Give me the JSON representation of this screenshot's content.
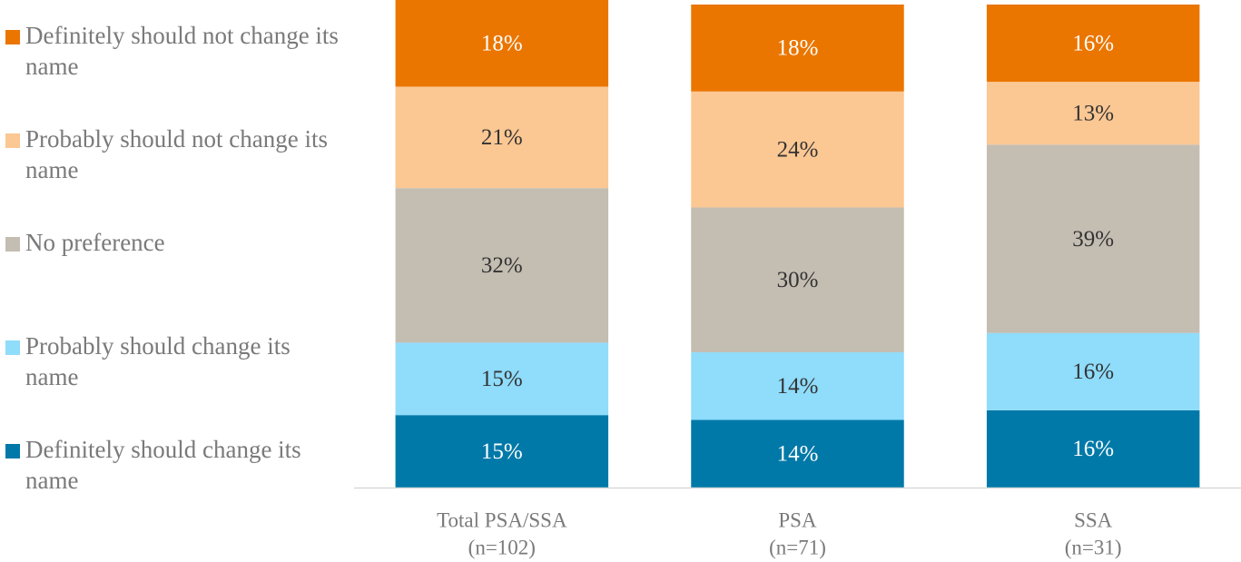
{
  "chart_data": {
    "type": "stacked_bar",
    "categories": [
      [
        "Total PSA/SSA",
        "(n=102)"
      ],
      [
        "PSA",
        "(n=71)"
      ],
      [
        "SSA",
        "(n=31)"
      ]
    ],
    "ylim": [
      0,
      100
    ],
    "series": [
      {
        "name": "Definitely should change its name",
        "color": "#0079a8",
        "values": [
          15,
          14,
          16
        ],
        "value_labels": [
          "15%",
          "14%",
          "16%"
        ]
      },
      {
        "name": "Probably should change its name",
        "color": "#8fdcfb",
        "values": [
          15,
          14,
          16
        ],
        "value_labels": [
          "15%",
          "14%",
          "16%"
        ]
      },
      {
        "name": "No preference",
        "color": "#c4bdb2",
        "values": [
          32,
          30,
          39
        ],
        "value_labels": [
          "32%",
          "30%",
          "39%"
        ]
      },
      {
        "name": "Probably should not change its name",
        "color": "#fbc793",
        "values": [
          21,
          24,
          13
        ],
        "value_labels": [
          "21%",
          "24%",
          "13%"
        ]
      },
      {
        "name": "Definitely should not change its name",
        "color": "#ea7600",
        "values": [
          18,
          18,
          16
        ],
        "value_labels": [
          "18%",
          "18%",
          "16%"
        ]
      }
    ]
  }
}
